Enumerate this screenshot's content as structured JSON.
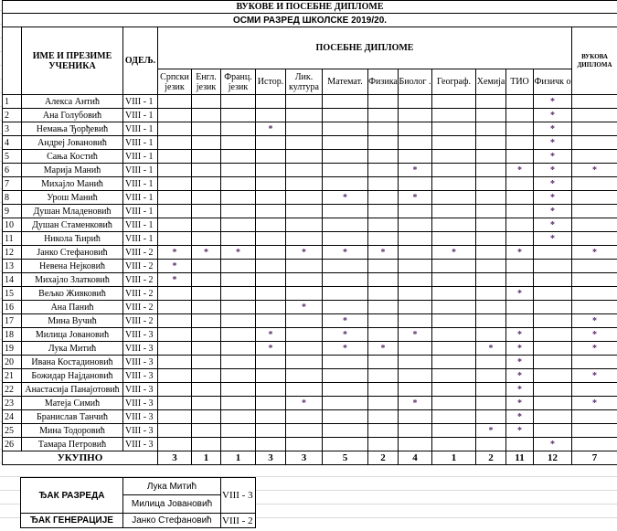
{
  "title": "ВУКОВЕ И ПОСЕБНЕ ДИПЛОМЕ",
  "subtitle": "ОСМИ РАЗРЕД ШКОЛСКЕ 2019/20.",
  "headers": {
    "name": "ИМЕ И ПРЕЗИМЕ УЧЕНИКА",
    "class": "ОДЕЉ.",
    "special": "ПОСЕБНЕ ДИПЛОМЕ",
    "vukova": "ВУКОВА ДИПЛОМА",
    "subjects": [
      "Српски језик",
      "Енгл. језик",
      "Франц. језик",
      "Истор.",
      "Лик. култура",
      "Математ.",
      "Физика",
      "Биолог .",
      "Географ.",
      "Хемија",
      "ТИО",
      "Физичк о"
    ]
  },
  "mark_color": "#5a2a6a",
  "students": [
    {
      "no": "1",
      "name": "Алекса Антић",
      "class": "VIII - 1",
      "marks": [
        "",
        "",
        "",
        "",
        "",
        "",
        "",
        "",
        "",
        "",
        "",
        "*",
        ""
      ]
    },
    {
      "no": "2",
      "name": "Ана Голубовић",
      "class": "VIII - 1",
      "marks": [
        "",
        "",
        "",
        "",
        "",
        "",
        "",
        "",
        "",
        "",
        "",
        "*",
        ""
      ]
    },
    {
      "no": "3",
      "name": "Немања Ђорђевић",
      "class": "VIII - 1",
      "marks": [
        "",
        "",
        "",
        "*",
        "",
        "",
        "",
        "",
        "",
        "",
        "",
        "*",
        ""
      ]
    },
    {
      "no": "4",
      "name": "Андреј Јовановић",
      "class": "VIII - 1",
      "marks": [
        "",
        "",
        "",
        "",
        "",
        "",
        "",
        "",
        "",
        "",
        "",
        "*",
        ""
      ]
    },
    {
      "no": "5",
      "name": "Сања Костић",
      "class": "VIII - 1",
      "marks": [
        "",
        "",
        "",
        "",
        "",
        "",
        "",
        "",
        "",
        "",
        "",
        "*",
        ""
      ]
    },
    {
      "no": "6",
      "name": "Марија Манић",
      "class": "VIII - 1",
      "marks": [
        "",
        "",
        "",
        "",
        "",
        "",
        "",
        "*",
        "",
        "",
        "*",
        "*",
        "*"
      ]
    },
    {
      "no": "7",
      "name": "Михајло Манић",
      "class": "VIII - 1",
      "marks": [
        "",
        "",
        "",
        "",
        "",
        "",
        "",
        "",
        "",
        "",
        "",
        "*",
        ""
      ]
    },
    {
      "no": "8",
      "name": "Урош Манић",
      "class": "VIII - 1",
      "marks": [
        "",
        "",
        "",
        "",
        "",
        "*",
        "",
        "*",
        "",
        "",
        "",
        "*",
        ""
      ]
    },
    {
      "no": "9",
      "name": "Душан Младеновић",
      "class": "VIII - 1",
      "marks": [
        "",
        "",
        "",
        "",
        "",
        "",
        "",
        "",
        "",
        "",
        "",
        "*",
        ""
      ]
    },
    {
      "no": "10",
      "name": "Душан Стаменковић",
      "class": "VIII - 1",
      "marks": [
        "",
        "",
        "",
        "",
        "",
        "",
        "",
        "",
        "",
        "",
        "",
        "*",
        ""
      ]
    },
    {
      "no": "11",
      "name": "Никола Ћирић",
      "class": "VIII - 1",
      "marks": [
        "",
        "",
        "",
        "",
        "",
        "",
        "",
        "",
        "",
        "",
        "",
        "*",
        ""
      ]
    },
    {
      "no": "12",
      "name": "Јанко Стефановић",
      "class": "VIII - 2",
      "marks": [
        "*",
        "*",
        "*",
        "",
        "*",
        "*",
        "*",
        "",
        "*",
        "",
        "*",
        "",
        "*"
      ]
    },
    {
      "no": "13",
      "name": "Невена Нејковић",
      "class": "VIII - 2",
      "marks": [
        "*",
        "",
        "",
        "",
        "",
        "",
        "",
        "",
        "",
        "",
        "",
        "",
        ""
      ]
    },
    {
      "no": "14",
      "name": "Михајло Златковић",
      "class": "VIII - 2",
      "marks": [
        "*",
        "",
        "",
        "",
        "",
        "",
        "",
        "",
        "",
        "",
        "",
        "",
        ""
      ]
    },
    {
      "no": "15",
      "name": "Вељко Живковић",
      "class": "VIII - 2",
      "marks": [
        "",
        "",
        "",
        "",
        "",
        "",
        "",
        "",
        "",
        "",
        "*",
        "",
        ""
      ]
    },
    {
      "no": "16",
      "name": "Ана Панић",
      "class": "VIII - 2",
      "marks": [
        "",
        "",
        "",
        "",
        "*",
        "",
        "",
        "",
        "",
        "",
        "",
        "",
        ""
      ]
    },
    {
      "no": "17",
      "name": "Мина Вучић",
      "class": "VIII - 2",
      "marks": [
        "",
        "",
        "",
        "",
        "",
        "*",
        "",
        "",
        "",
        "",
        "",
        "",
        "*"
      ]
    },
    {
      "no": "18",
      "name": "Милица Јовановић",
      "class": "VIII - 3",
      "marks": [
        "",
        "",
        "",
        "*",
        "",
        "*",
        "",
        "*",
        "",
        "",
        "*",
        "",
        "*"
      ]
    },
    {
      "no": "19",
      "name": "Лука Митић",
      "class": "VIII - 3",
      "marks": [
        "",
        "",
        "",
        "*",
        "",
        "*",
        "*",
        "",
        "",
        "*",
        "*",
        "",
        "*"
      ]
    },
    {
      "no": "20",
      "name": "Ивана Костадиновић",
      "class": "VIII - 3",
      "marks": [
        "",
        "",
        "",
        "",
        "",
        "",
        "",
        "",
        "",
        "",
        "*",
        "",
        ""
      ]
    },
    {
      "no": "21",
      "name": "Божидар Најдановић",
      "class": "VIII - 3",
      "marks": [
        "",
        "",
        "",
        "",
        "",
        "",
        "",
        "",
        "",
        "",
        "*",
        "",
        "*"
      ]
    },
    {
      "no": "22",
      "name": "Анастасија Панајотовић",
      "class": "VIII - 3",
      "marks": [
        "",
        "",
        "",
        "",
        "",
        "",
        "",
        "",
        "",
        "",
        "*",
        "",
        ""
      ]
    },
    {
      "no": "23",
      "name": "Матеја Симић",
      "class": "VIII - 3",
      "marks": [
        "",
        "",
        "",
        "",
        "*",
        "",
        "",
        "*",
        "",
        "",
        "*",
        "",
        "*"
      ]
    },
    {
      "no": "24",
      "name": "Бранислав Танчић",
      "class": "VIII - 3",
      "marks": [
        "",
        "",
        "",
        "",
        "",
        "",
        "",
        "",
        "",
        "",
        "*",
        "",
        ""
      ]
    },
    {
      "no": "25",
      "name": "Мина Тодоровић",
      "class": "VIII - 3",
      "marks": [
        "",
        "",
        "",
        "",
        "",
        "",
        "",
        "",
        "",
        "*",
        "*",
        "",
        ""
      ]
    },
    {
      "no": "26",
      "name": "Тамара Петровић",
      "class": "VIII - 3",
      "marks": [
        "",
        "",
        "",
        "",
        "",
        "",
        "",
        "",
        "",
        "",
        "",
        "*",
        ""
      ]
    }
  ],
  "total": {
    "label": "УКУПНО",
    "values": [
      "3",
      "1",
      "1",
      "3",
      "3",
      "5",
      "2",
      "4",
      "1",
      "2",
      "11",
      "12",
      "7"
    ]
  },
  "best": {
    "class_label": "ЂАК РАЗРЕДА",
    "class_students": [
      "Лука Митић",
      "Милица Јовановић"
    ],
    "class_class": "VIII - 3",
    "gen_label": "ЂАК ГЕНЕРАЦИЈЕ",
    "gen_student": "Јанко Стефановић",
    "gen_class": "VIII - 2"
  }
}
